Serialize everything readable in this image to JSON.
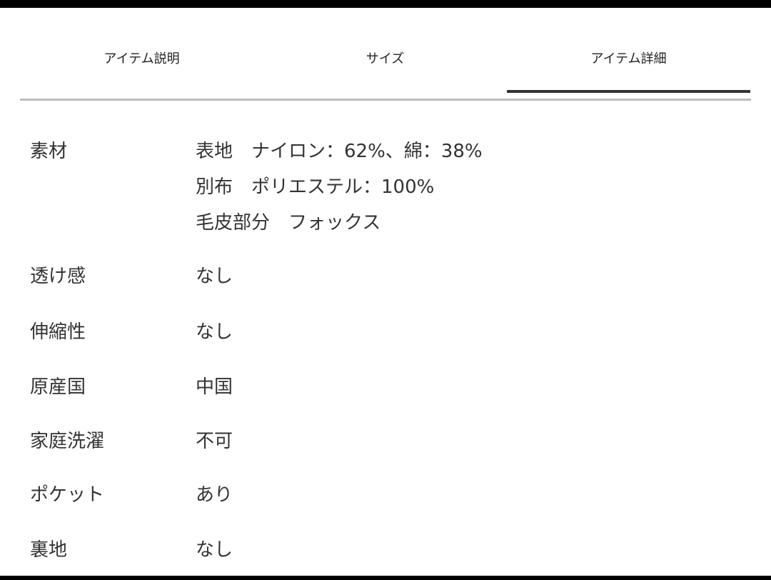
{
  "tabs": [
    {
      "label": "アイテム説明"
    },
    {
      "label": "サイズ"
    },
    {
      "label": "アイテム詳細",
      "active": true
    }
  ],
  "details": [
    {
      "label": "素材",
      "values": [
        "表地　ナイロン：62%、綿：38%",
        "別布　ポリエステル：100%",
        "毛皮部分　フォックス"
      ]
    },
    {
      "label": "透け感",
      "values": [
        "なし"
      ]
    },
    {
      "label": "伸縮性",
      "values": [
        "なし"
      ]
    },
    {
      "label": "原産国",
      "values": [
        "中国"
      ]
    },
    {
      "label": "家庭洗濯",
      "values": [
        "不可"
      ]
    },
    {
      "label": "ポケット",
      "values": [
        "あり"
      ]
    },
    {
      "label": "裏地",
      "values": [
        "なし"
      ]
    }
  ]
}
